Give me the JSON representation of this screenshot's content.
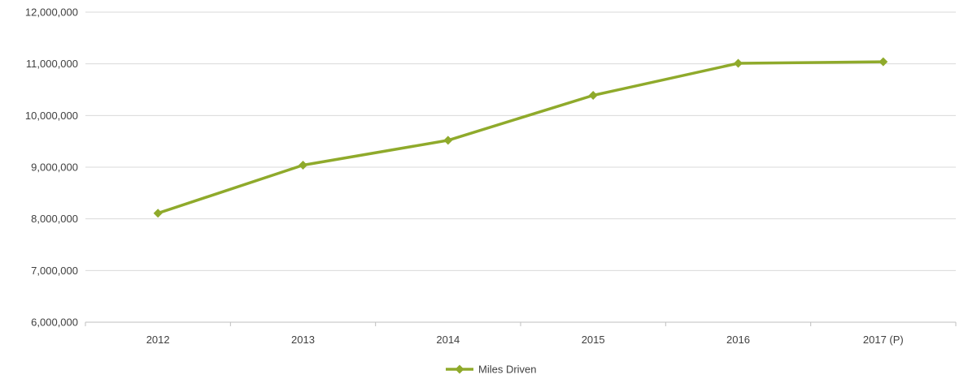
{
  "chart_data": {
    "type": "line",
    "categories": [
      "2012",
      "2013",
      "2014",
      "2015",
      "2016",
      "2017 (P)"
    ],
    "series": [
      {
        "name": "Miles Driven",
        "values": [
          8110000,
          9040000,
          9520000,
          10390000,
          11010000,
          11040000
        ]
      }
    ],
    "ylim": [
      6000000,
      12000000
    ],
    "yticks": [
      6000000,
      7000000,
      8000000,
      9000000,
      10000000,
      11000000,
      12000000
    ],
    "ytick_labels": [
      "6,000,000",
      "7,000,000",
      "8,000,000",
      "9,000,000",
      "10,000,000",
      "11,000,000",
      "12,000,000"
    ],
    "grid": true,
    "legend_position": "bottom",
    "line_color": "#8faa2b",
    "grid_color": "#d9d9d9",
    "axis_color": "#bfbfbf",
    "marker": "diamond"
  }
}
